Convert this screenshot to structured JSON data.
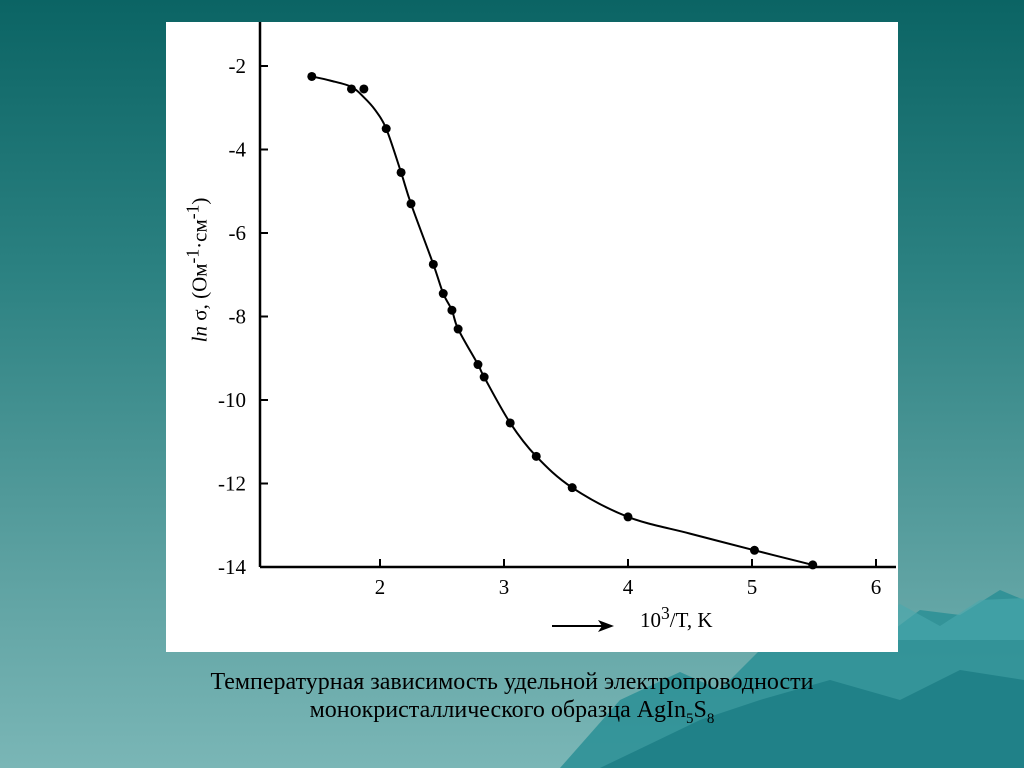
{
  "colors": {
    "background_top": "#0b6464",
    "background_bottom": "#7ab6b6",
    "panel": "#ffffff",
    "ink": "#000000"
  },
  "chart_data": {
    "type": "line",
    "ylabel_parts": {
      "ln": "ln",
      "sigma": " σ, (Ом",
      "sup1": "-1",
      "sep": "·см",
      "sup2": "-1",
      "close": ")"
    },
    "xlabel_parts": {
      "base": "10",
      "sup": "3",
      "rest": "/T, K"
    },
    "xlim": [
      1.2,
      6.2
    ],
    "ylim": [
      -14,
      -1
    ],
    "x_ticks": [
      2,
      3,
      4,
      5,
      6
    ],
    "x_tick_labels": [
      "2",
      "3",
      "4",
      "5",
      "6"
    ],
    "y_ticks": [
      -2,
      -4,
      -6,
      -8,
      -10,
      -12,
      -14
    ],
    "y_tick_labels": [
      "-2",
      "-4",
      "-6",
      "-8",
      "-10",
      "-12",
      "-14"
    ],
    "grid": false,
    "series": [
      {
        "x": [
          1.45,
          1.77,
          1.87,
          2.05,
          2.17,
          2.25,
          2.43,
          2.51,
          2.58,
          2.63,
          2.79,
          2.84,
          3.05,
          3.26,
          3.55,
          4.0,
          5.02,
          5.49
        ],
        "y": [
          -2.25,
          -2.55,
          -2.55,
          -3.5,
          -4.55,
          -5.3,
          -6.75,
          -7.45,
          -7.85,
          -8.3,
          -9.15,
          -9.45,
          -10.55,
          -11.35,
          -12.1,
          -12.8,
          -13.6,
          -13.95
        ]
      }
    ],
    "curve": {
      "x": [
        1.45,
        1.6,
        1.77,
        1.87,
        1.96,
        2.05,
        2.17,
        2.25,
        2.43,
        2.51,
        2.58,
        2.63,
        2.79,
        2.84,
        3.05,
        3.26,
        3.55,
        4.0,
        4.5,
        5.02,
        5.49
      ],
      "y": [
        -2.25,
        -2.35,
        -2.5,
        -2.75,
        -3.05,
        -3.5,
        -4.55,
        -5.3,
        -6.75,
        -7.45,
        -7.85,
        -8.3,
        -9.15,
        -9.45,
        -10.55,
        -11.35,
        -12.1,
        -12.8,
        -13.2,
        -13.6,
        -13.95
      ]
    }
  },
  "caption": {
    "line1": "Температурная зависимость удельной электропроводности",
    "line2_prefix": "монокристаллического образца AgIn",
    "sub1": "5",
    "mid": "S",
    "sub2": "8"
  }
}
